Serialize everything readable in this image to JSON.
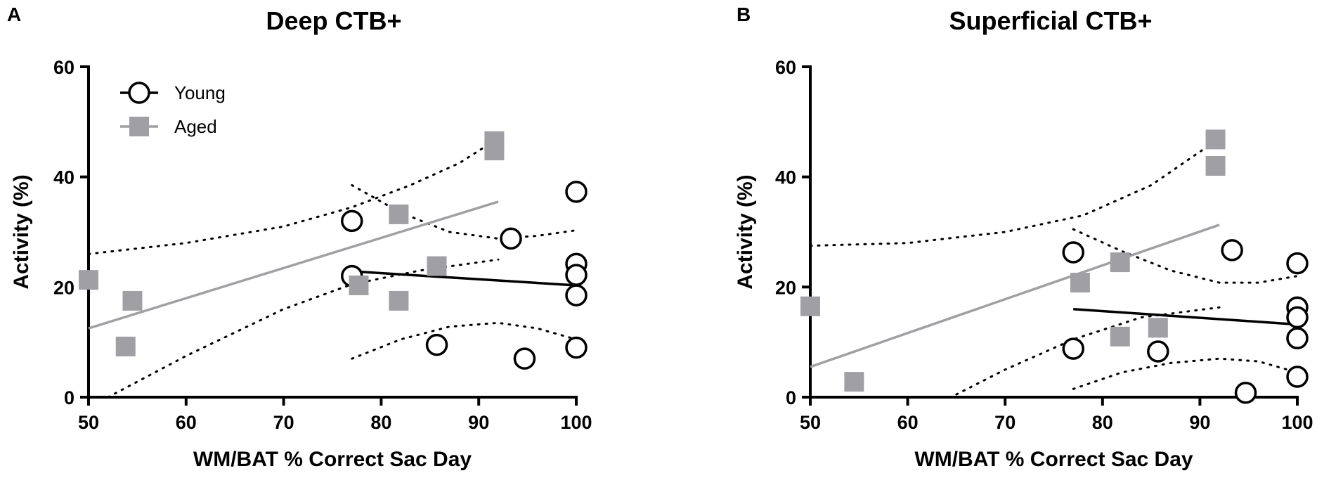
{
  "chart_data": [
    {
      "type": "scatter",
      "panel_letter": "A",
      "title": "Deep CTB+",
      "xlabel": "WM/BAT % Correct Sac Day",
      "ylabel": "Activity (%)",
      "xlim": [
        50,
        100
      ],
      "ylim": [
        0,
        60
      ],
      "xticks": [
        50,
        60,
        70,
        80,
        90,
        100
      ],
      "yticks": [
        0,
        20,
        40,
        60
      ],
      "legend": {
        "position": "top-left",
        "entries": [
          "Young",
          "Aged"
        ]
      },
      "series": [
        {
          "name": "Young",
          "marker": "open-circle",
          "color": "#000000",
          "points": [
            [
              77,
              32
            ],
            [
              77,
              22
            ],
            [
              85.7,
              9.5
            ],
            [
              93.3,
              28.8
            ],
            [
              94.7,
              7
            ],
            [
              100,
              37.3
            ],
            [
              100,
              24.2
            ],
            [
              100,
              22.2
            ],
            [
              100,
              18.5
            ],
            [
              100,
              9
            ]
          ],
          "fit": [
            [
              77.5,
              22.8
            ],
            [
              100,
              20.3
            ]
          ],
          "ci_upper": [
            [
              77,
              38.5
            ],
            [
              82,
              33.5
            ],
            [
              87,
              30
            ],
            [
              92,
              28.8
            ],
            [
              96,
              29.3
            ],
            [
              100,
              30.3
            ]
          ],
          "ci_lower": [
            [
              77,
              7
            ],
            [
              82,
              10.5
            ],
            [
              87,
              12.8
            ],
            [
              92,
              13.5
            ],
            [
              96,
              12.5
            ],
            [
              100,
              10.5
            ]
          ]
        },
        {
          "name": "Aged",
          "marker": "filled-square",
          "color": "#a0a0a4",
          "points": [
            [
              50,
              21.3
            ],
            [
              53.8,
              9.2
            ],
            [
              54.5,
              17.5
            ],
            [
              77.7,
              20.3
            ],
            [
              81.8,
              33.2
            ],
            [
              81.8,
              17.5
            ],
            [
              85.7,
              23.8
            ],
            [
              91.6,
              46.5
            ],
            [
              91.6,
              44.8
            ]
          ],
          "fit": [
            [
              50,
              12.5
            ],
            [
              92,
              35.5
            ]
          ],
          "ci_upper": [
            [
              50,
              26
            ],
            [
              60,
              28
            ],
            [
              70,
              31
            ],
            [
              77,
              34.5
            ],
            [
              83,
              38.5
            ],
            [
              88,
              42.5
            ],
            [
              92,
              47
            ]
          ],
          "ci_lower": [
            [
              52,
              0
            ],
            [
              60,
              7.5
            ],
            [
              70,
              16
            ],
            [
              77,
              20.5
            ],
            [
              84,
              23
            ],
            [
              92,
              25
            ]
          ]
        }
      ]
    },
    {
      "type": "scatter",
      "panel_letter": "B",
      "title": "Superficial CTB+",
      "xlabel": "WM/BAT % Correct Sac Day",
      "ylabel": "Activity (%)",
      "xlim": [
        50,
        100
      ],
      "ylim": [
        0,
        60
      ],
      "xticks": [
        50,
        60,
        70,
        80,
        90,
        100
      ],
      "yticks": [
        0,
        20,
        40,
        60
      ],
      "series": [
        {
          "name": "Young",
          "marker": "open-circle",
          "color": "#000000",
          "points": [
            [
              77,
              26.3
            ],
            [
              77,
              8.8
            ],
            [
              85.7,
              8.3
            ],
            [
              93.3,
              26.7
            ],
            [
              94.7,
              0.8
            ],
            [
              100,
              24.3
            ],
            [
              100,
              16.3
            ],
            [
              100,
              14.5
            ],
            [
              100,
              10.7
            ],
            [
              100,
              3.7
            ]
          ],
          "fit": [
            [
              77,
              16
            ],
            [
              100,
              13.2
            ]
          ],
          "ci_upper": [
            [
              77,
              30.5
            ],
            [
              82,
              26.5
            ],
            [
              87,
              23
            ],
            [
              92,
              20.8
            ],
            [
              96,
              20.8
            ],
            [
              100,
              22
            ]
          ],
          "ci_lower": [
            [
              77,
              1.5
            ],
            [
              82,
              4.5
            ],
            [
              87,
              6.2
            ],
            [
              92,
              7
            ],
            [
              96,
              6.5
            ],
            [
              100,
              4.5
            ]
          ]
        },
        {
          "name": "Aged",
          "marker": "filled-square",
          "color": "#a0a0a4",
          "points": [
            [
              50,
              16.5
            ],
            [
              54.5,
              2.8
            ],
            [
              77.7,
              20.8
            ],
            [
              81.8,
              24.5
            ],
            [
              81.8,
              11
            ],
            [
              85.7,
              12.6
            ],
            [
              91.6,
              46.8
            ],
            [
              91.6,
              42
            ]
          ],
          "fit": [
            [
              50,
              5.5
            ],
            [
              92,
              31.3
            ]
          ],
          "ci_upper": [
            [
              50,
              27.5
            ],
            [
              60,
              28
            ],
            [
              70,
              30
            ],
            [
              78,
              33
            ],
            [
              85,
              38.5
            ],
            [
              92,
              47
            ]
          ],
          "ci_lower": [
            [
              65,
              0.5
            ],
            [
              70,
              5
            ],
            [
              77,
              10.5
            ],
            [
              84,
              14.5
            ],
            [
              92,
              16.3
            ]
          ]
        }
      ]
    }
  ]
}
